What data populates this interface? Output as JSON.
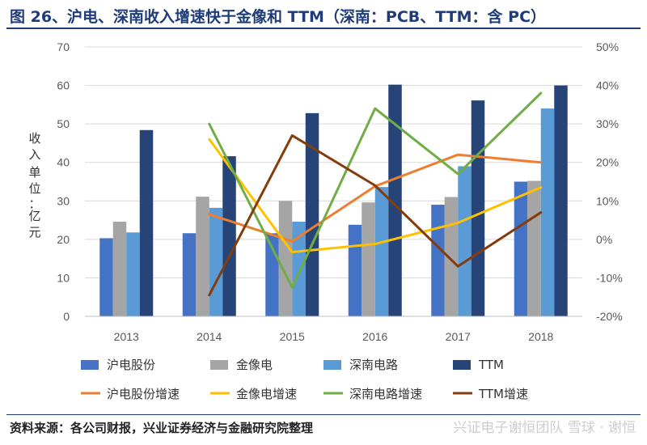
{
  "header": {
    "title": "图 26、沪电、深南收入增速快于金像和 TTM（深南：PCB、TTM：含 PC）"
  },
  "footer": {
    "source": "资料来源：各公司财报，兴业证券经济与金融研究院整理",
    "watermark": "兴证电子谢恒团队  雪球 · 谢恒"
  },
  "chart_data": {
    "type": "bar+line",
    "title": "图 26、沪电、深南收入增速快于金像和 TTM（深南：PCB、TTM：含 PC）",
    "categories": [
      "2013",
      "2014",
      "2015",
      "2016",
      "2017",
      "2018"
    ],
    "ylabel_chars": [
      "收",
      "入",
      "单",
      "位",
      "：",
      "亿",
      "元"
    ],
    "y_left": {
      "min": 0,
      "max": 70,
      "ticks": [
        "0",
        "10",
        "20",
        "30",
        "40",
        "50",
        "60",
        "70"
      ]
    },
    "y_right": {
      "min": -20,
      "max": 50,
      "ticks": [
        "-20%",
        "-10%",
        "0%",
        "10%",
        "20%",
        "30%",
        "40%",
        "50%"
      ]
    },
    "bar_series": [
      {
        "name": "沪电股份",
        "color": "#4472c4",
        "values": [
          20.3,
          21.6,
          21.6,
          23.8,
          29.0,
          35.0
        ]
      },
      {
        "name": "金像电",
        "color": "#a5a5a5",
        "values": [
          24.6,
          31.1,
          30.0,
          29.6,
          31.0,
          35.2
        ]
      },
      {
        "name": "深南电路",
        "color": "#5b9bd5",
        "values": [
          21.8,
          28.2,
          24.6,
          33.6,
          39.0,
          54.0
        ]
      },
      {
        "name": "TTM",
        "color": "#264478",
        "values": [
          48.4,
          41.6,
          52.8,
          60.2,
          56.1,
          60.0
        ]
      }
    ],
    "line_series": [
      {
        "name": "沪电股份增速",
        "color": "#ed7d31",
        "values": [
          null,
          6.5,
          -0.5,
          13.8,
          22.0,
          20.0
        ]
      },
      {
        "name": "金像电增速",
        "color": "#ffc000",
        "values": [
          null,
          26.0,
          -3.3,
          -1.2,
          4.3,
          13.5
        ]
      },
      {
        "name": "深南电路增速",
        "color": "#70ad47",
        "values": [
          null,
          30.0,
          -12.5,
          34.0,
          17.0,
          38.0
        ]
      },
      {
        "name": "TTM增速",
        "color": "#843c0c",
        "values": [
          null,
          -14.5,
          27.0,
          14.0,
          -7.0,
          7.0
        ]
      }
    ]
  }
}
